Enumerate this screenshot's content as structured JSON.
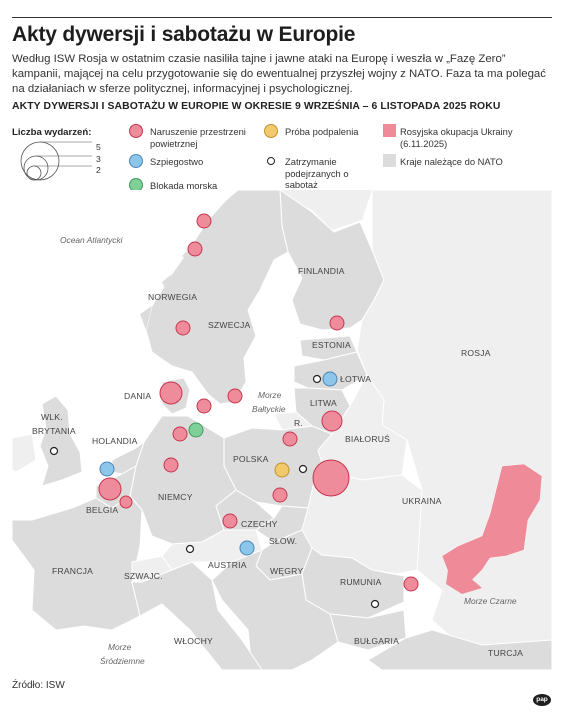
{
  "title": "Akty dywersji i sabotażu w Europie",
  "lead": "Według ISW Rosja w ostatnim czasie nasiliła tajne i jawne ataki na Europę i weszła w „Fazę Zero” kampanii, mającej na celu przygotowanie się do ewentualnej przyszłej wojny z NATO. Faza ta ma polegać na działaniach w sferze politycznej, informacyjnej i psychologicznej.",
  "subtitle": "AKTY DYWERSJI I SABOTAŻU W EUROPIE W OKRESIE 9 WRZEŚNIA – 6 LISTOPADA 2025 ROKU",
  "legend": {
    "size_title": "Liczba wydarzeń:",
    "size_values": [
      "5",
      "3",
      "2"
    ],
    "airspace": "Naruszenie przestrzeni powietrznej",
    "espionage": "Szpiegostwo",
    "blockade": "Blokada morska",
    "arson": "Próba podpalenia",
    "arrests": "Zatrzymanie podejrzanych o sabotaż",
    "occupation": "Rosyjska okupacja Ukrainy (6.11.2025)",
    "nato": "Kraje należące do NATO"
  },
  "colors": {
    "airspace": "#ee8c9b",
    "espionage": "#8cc6ea",
    "blockade": "#7fcf98",
    "arson": "#f2c96c",
    "occupation": "#ef8a99",
    "nato": "#dcdcdc",
    "non_nato": "#efefef",
    "sea": "#ffffff",
    "stroke": "#c7364d"
  },
  "countries": {
    "finland": "FINLANDIA",
    "norway": "NORWEGIA",
    "sweden": "SZWECJA",
    "estonia": "ESTONIA",
    "latvia": "ŁOTWA",
    "lithuania": "LITWA",
    "russia": "ROSJA",
    "russia_kal": "R.",
    "belarus": "BIAŁORUŚ",
    "poland": "POLSKA",
    "ukraine": "UKRAINA",
    "denmark": "DANIA",
    "uk_1": "WLK.",
    "uk_2": "BRYTANIA",
    "netherlands": "HOLANDIA",
    "belgium": "BELGIA",
    "germany": "NIEMCY",
    "czechia": "CZECHY",
    "slovakia": "SŁOW.",
    "austria": "AUSTRIA",
    "hungary": "WĘGRY",
    "france": "FRANCJA",
    "switzerland": "SZWAJC.",
    "romania": "RUMUNIA",
    "bulgaria": "BUŁGARIA",
    "italy": "WŁOCHY",
    "turkey": "TURCJA"
  },
  "seas": {
    "atlantic": "Ocean Atlantycki",
    "baltic_1": "Morze",
    "baltic_2": "Bałtyckie",
    "black": "Morze Czarne",
    "med_1": "Morze",
    "med_2": "Śródziemne"
  },
  "source": "Źródło: ISW",
  "logo": "pap"
}
